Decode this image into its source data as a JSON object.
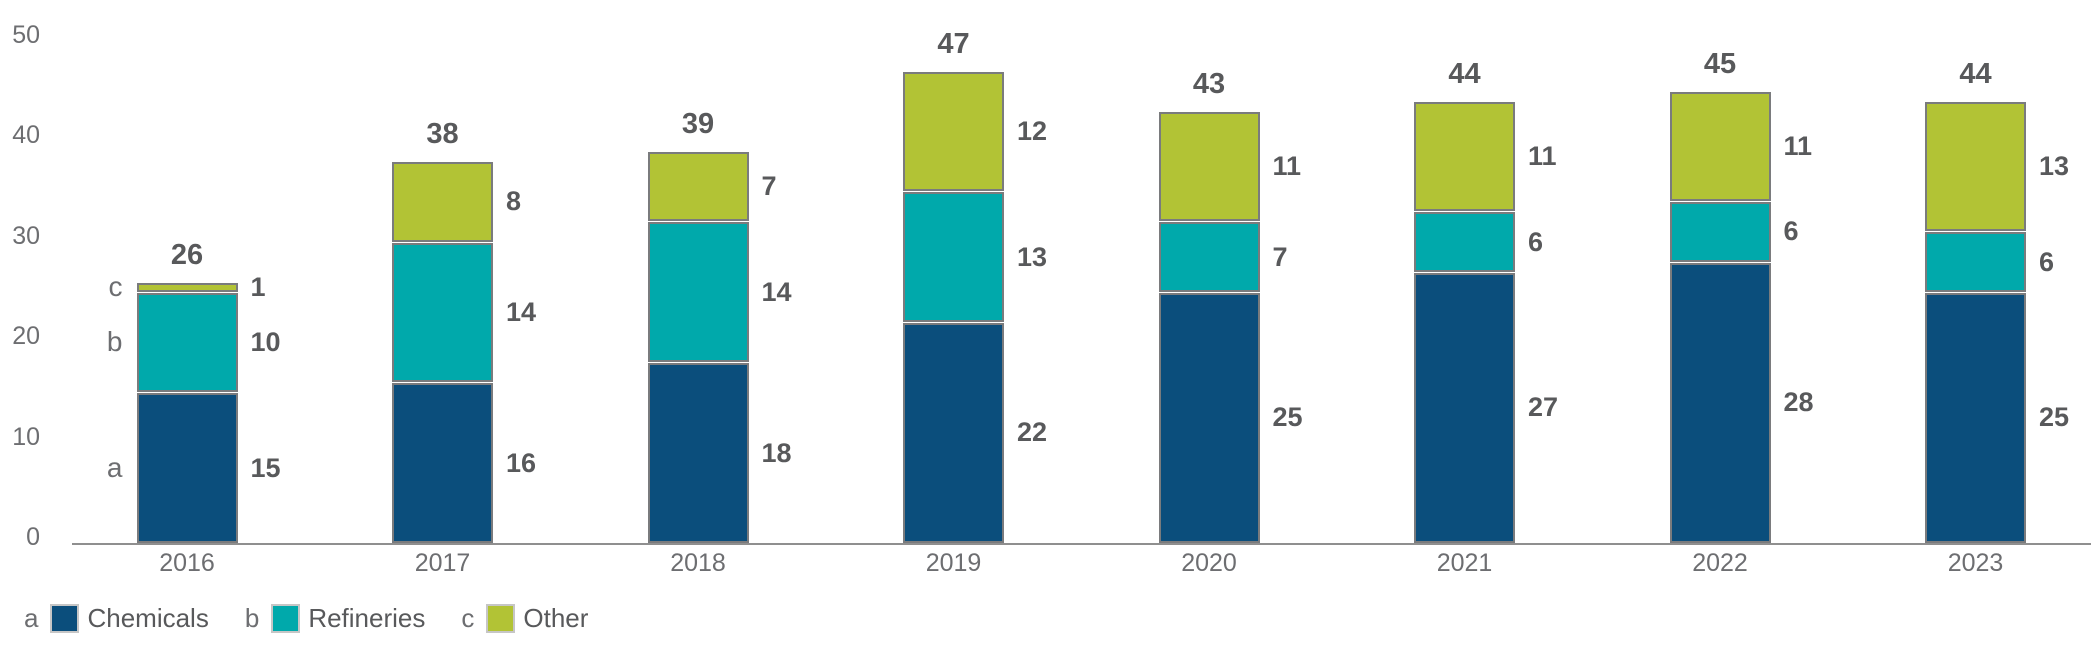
{
  "chart_data": {
    "type": "bar",
    "stacked": true,
    "title": "",
    "xlabel": "",
    "ylabel": "",
    "categories": [
      "2016",
      "2017",
      "2018",
      "2019",
      "2020",
      "2021",
      "2022",
      "2023"
    ],
    "series": [
      {
        "letter": "a",
        "name": "Chemicals",
        "color": "#0b4e7c",
        "values": [
          15,
          16,
          18,
          22,
          25,
          27,
          28,
          25
        ]
      },
      {
        "letter": "b",
        "name": "Refineries",
        "color": "#00a9ab",
        "values": [
          10,
          14,
          14,
          13,
          7,
          6,
          6,
          6
        ]
      },
      {
        "letter": "c",
        "name": "Other",
        "color": "#b2c335",
        "values": [
          1,
          8,
          7,
          12,
          11,
          11,
          11,
          13
        ]
      }
    ],
    "totals": [
      26,
      38,
      39,
      47,
      43,
      44,
      45,
      44
    ],
    "y_axis": {
      "ticks": [
        0,
        10,
        20,
        30,
        40,
        50
      ],
      "min": 0,
      "max": 50,
      "gridlines": false
    },
    "first_bar_segment_letters": [
      "a",
      "b",
      "c"
    ],
    "legend": {
      "position": "bottom-left",
      "items": [
        {
          "letter": "a",
          "label": "Chemicals",
          "color": "#0b4e7c"
        },
        {
          "letter": "b",
          "label": "Refineries",
          "color": "#00a9ab"
        },
        {
          "letter": "c",
          "label": "Other",
          "color": "#b2c335"
        }
      ]
    },
    "style_colors": {
      "segment_border": "#7a7b7d",
      "axis_line": "#8f8f8f",
      "value_text": "#58595b",
      "tick_text": "#6d6e71"
    }
  }
}
